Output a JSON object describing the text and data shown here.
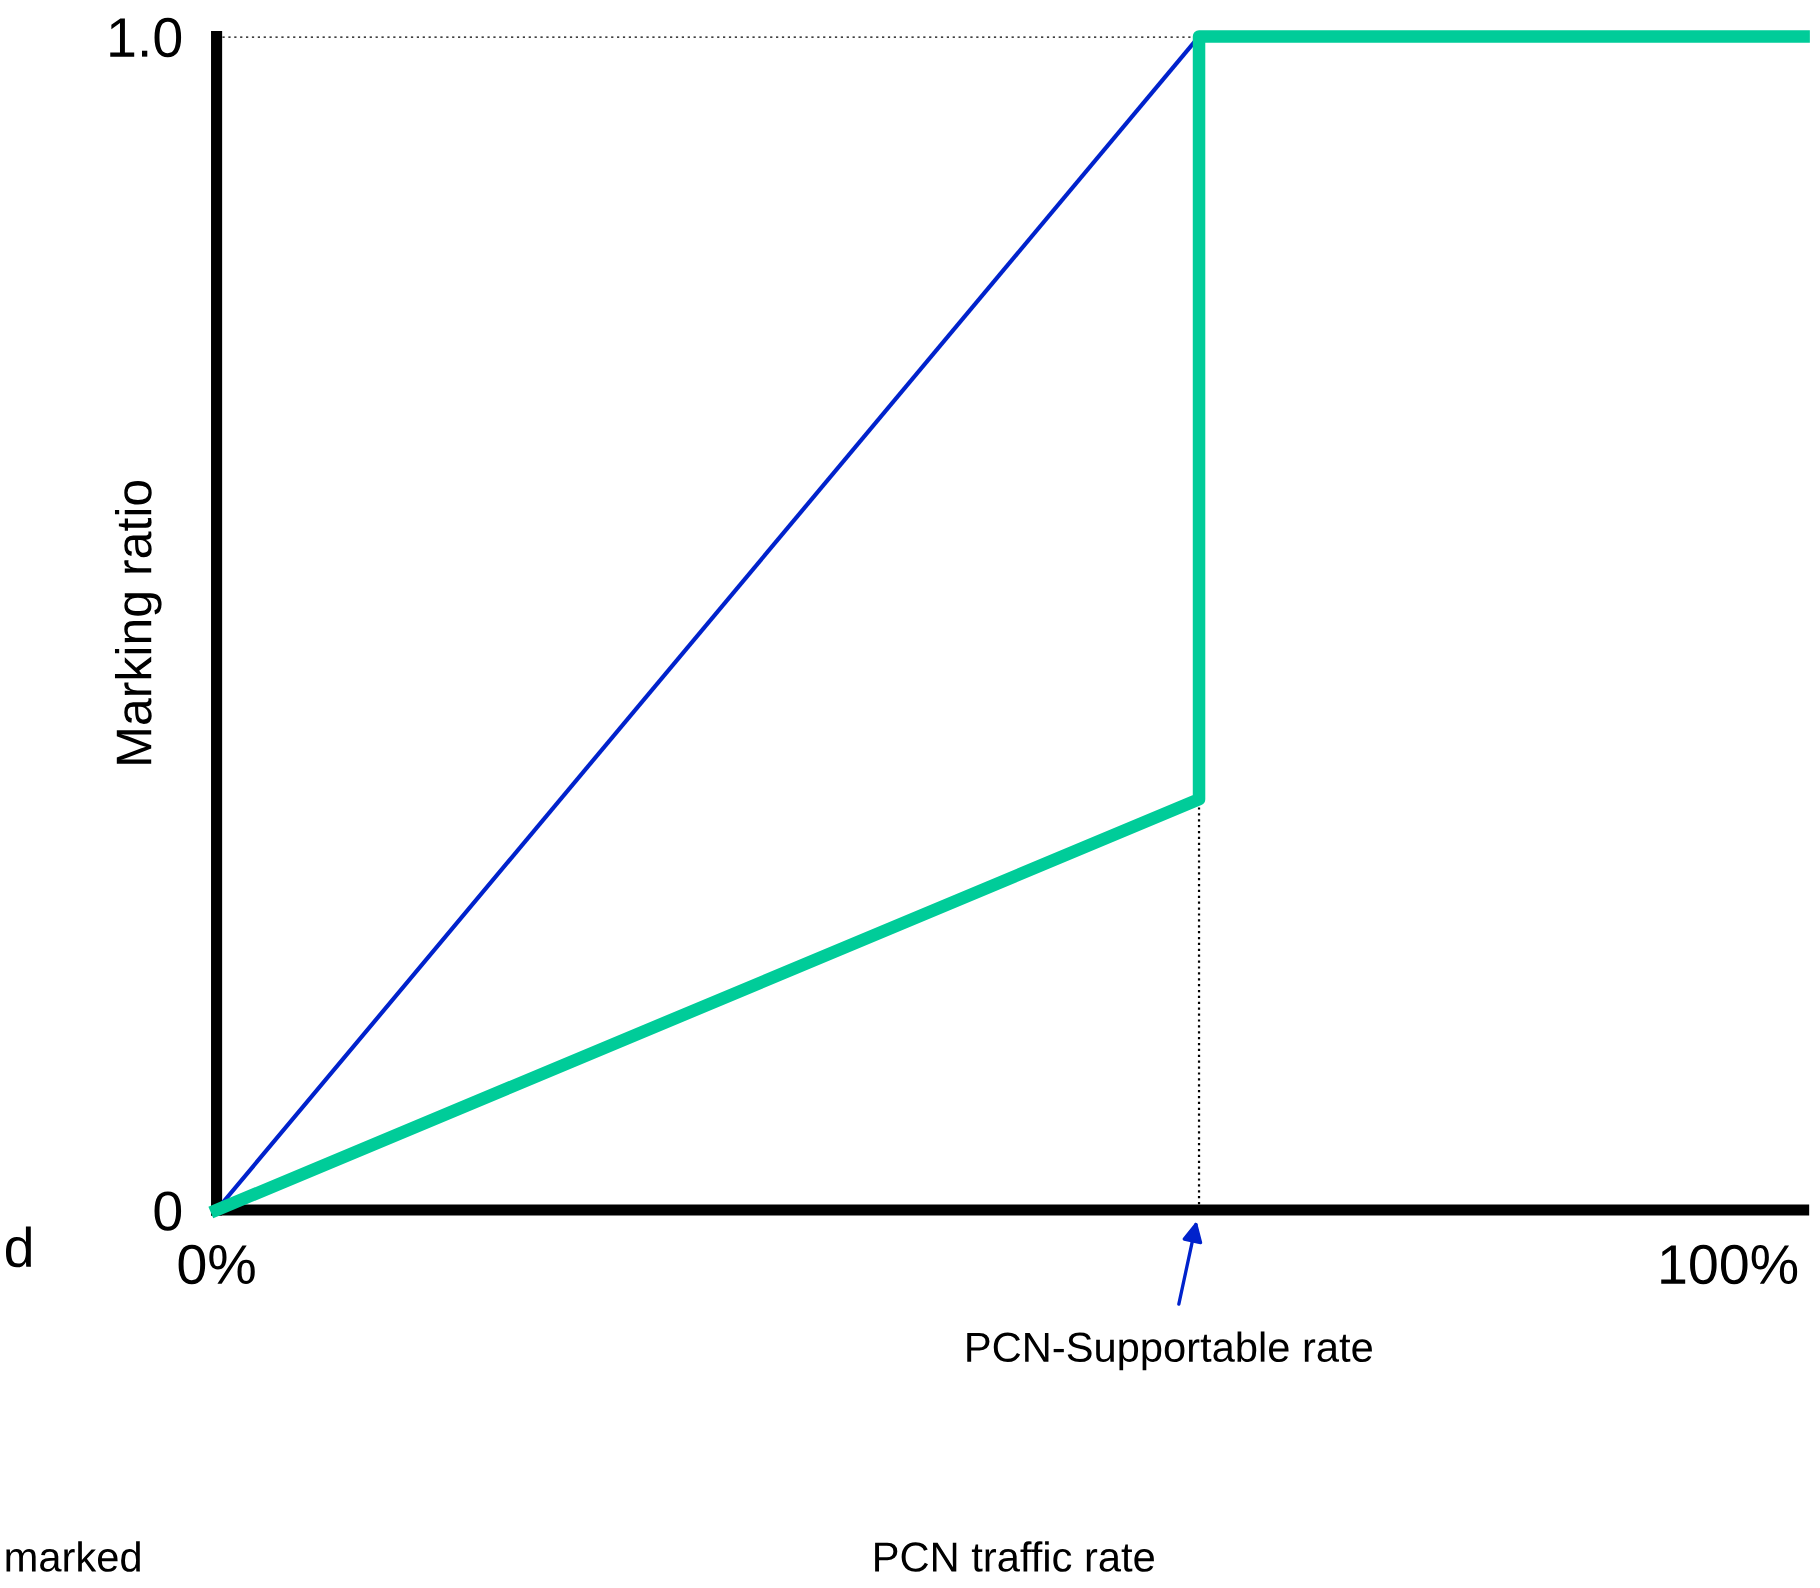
{
  "chart_data": {
    "type": "line",
    "ylabel": "Marking ratio",
    "series": [
      {
        "color": "#0022cc",
        "x": [
          0,
          65
        ],
        "values": [
          0,
          1.0
        ],
        "line_style": "solid"
      },
      {
        "color": "#00cc99",
        "x": [
          0,
          65,
          65,
          105
        ],
        "values": [
          0,
          0.35,
          1.0,
          1.0
        ],
        "line_style": "solid"
      }
    ],
    "xlim": [
      0,
      105
    ],
    "ylim": [
      0,
      1.0
    ],
    "xticks": [
      {
        "value": 0,
        "label": "0%"
      },
      {
        "value": 100,
        "label": "100%"
      }
    ],
    "yticks": [
      0,
      {
        "value": 1,
        "label": "1.0"
      }
    ],
    "ref_lines": [
      {
        "axis": "x",
        "value": 65,
        "line_style": "dotted",
        "color": "#000000"
      },
      {
        "axis": "y",
        "value": 1,
        "line_style": "dotted",
        "color": "#000000"
      }
    ],
    "annotations": [
      "PCN-Supportable rate",
      "PCN traffic rate",
      "d",
      "marked"
    ],
    "grid": false,
    "legend": false,
    "marker": "none"
  }
}
